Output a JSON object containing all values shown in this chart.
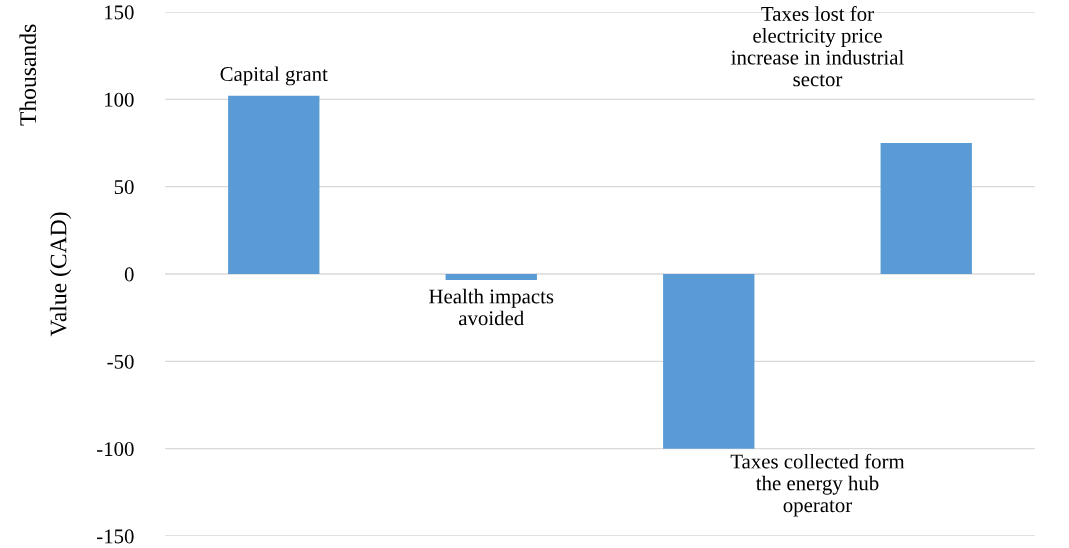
{
  "chart_data": {
    "type": "bar",
    "ylabel": "Value (CAD)",
    "categories": [
      null,
      null,
      null,
      null
    ],
    "values": [
      102,
      -3.5,
      -100,
      75
    ],
    "color": "#5b9bd5",
    "ylim": [
      -150,
      150
    ],
    "yticks": [
      -150,
      -100,
      -50,
      0,
      50,
      100,
      150
    ],
    "grid": "y",
    "annotations": [
      "Thousands",
      "Capital grant",
      "Health impacts\navoided",
      "Taxes collected form\nthe energy hub\noperator",
      "Taxes lost for\nelectricity price\nincrease in industrial\nsector"
    ]
  }
}
